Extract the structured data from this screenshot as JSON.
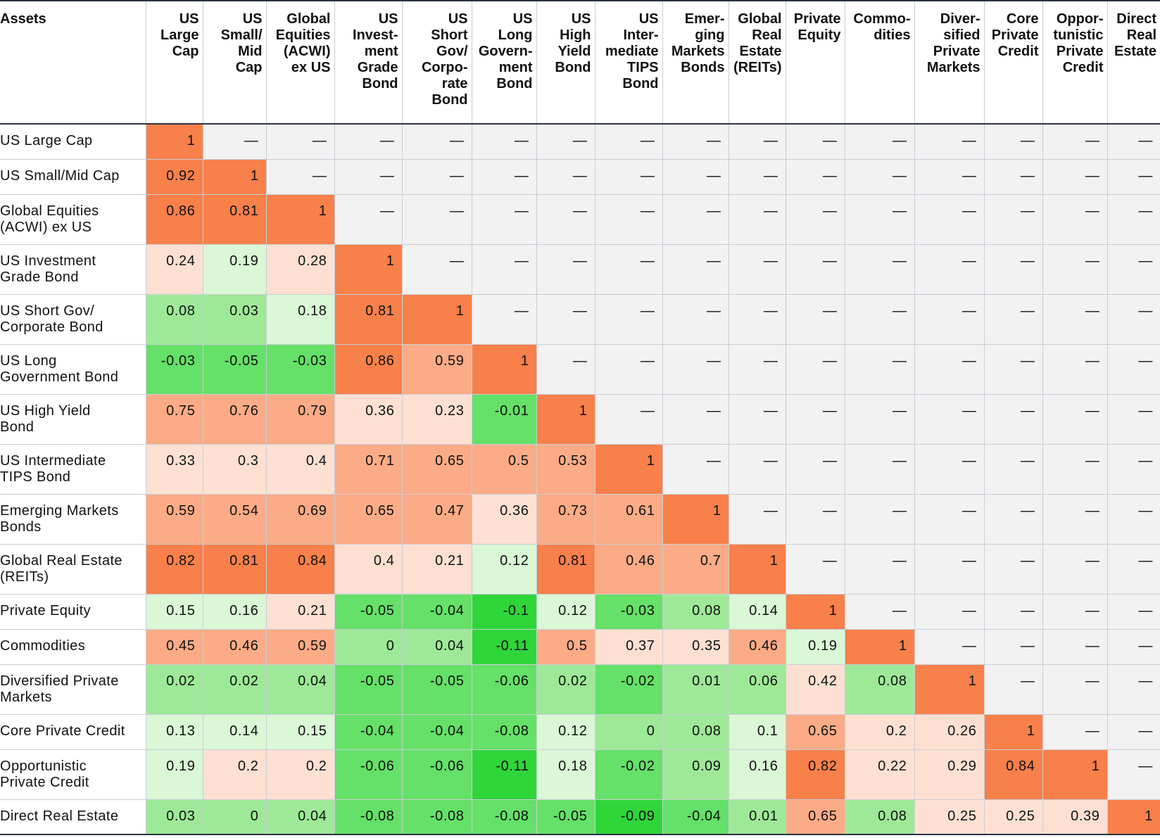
{
  "chart_data": {
    "type": "heatmap",
    "corner_label": "Assets",
    "column_headers": [
      "US\nLarge\nCap",
      "US\nSmall/\nMid\nCap",
      "Global\nEquities\n(ACWI)\nex US",
      "US\nInvest-\nment\nGrade\nBond",
      "US\nShort\nGov/\nCorpo-\nrate\nBond",
      "US\nLong\nGovern-\nment\nBond",
      "US\nHigh\nYield\nBond",
      "US\nInter-\nmediate\nTIPS\nBond",
      "Emer-\nging\nMarkets\nBonds",
      "Global\nReal\nEstate\n(REITs)",
      "Private\nEquity",
      "Commo-\ndities",
      "Diver-\nsified\nPrivate\nMarkets",
      "Core\nPrivate\nCredit",
      "Oppor-\ntunistic\nPrivate\nCredit",
      "Direct\nReal\nEstate"
    ],
    "row_headers": [
      "US Large Cap",
      "US Small/Mid Cap",
      "Global Equities\n(ACWI) ex US",
      "US Investment\nGrade Bond",
      "US Short Gov/\nCorporate Bond",
      "US Long\nGovernment Bond",
      "US High Yield\nBond",
      "US Intermediate\nTIPS Bond",
      "Emerging Markets\nBonds",
      "Global Real Estate\n(REITs)",
      "Private Equity",
      "Commodities",
      "Diversified Private\nMarkets",
      "Core Private Credit",
      "Opportunistic\nPrivate Credit",
      "Direct Real Estate"
    ],
    "empty_cell_text": "—",
    "values": [
      [
        "1"
      ],
      [
        "0.92",
        "1"
      ],
      [
        "0.86",
        "0.81",
        "1"
      ],
      [
        "0.24",
        "0.19",
        "0.28",
        "1"
      ],
      [
        "0.08",
        "0.03",
        "0.18",
        "0.81",
        "1"
      ],
      [
        "-0.03",
        "-0.05",
        "-0.03",
        "0.86",
        "0.59",
        "1"
      ],
      [
        "0.75",
        "0.76",
        "0.79",
        "0.36",
        "0.23",
        "-0.01",
        "1"
      ],
      [
        "0.33",
        "0.3",
        "0.4",
        "0.71",
        "0.65",
        "0.5",
        "0.53",
        "1"
      ],
      [
        "0.59",
        "0.54",
        "0.69",
        "0.65",
        "0.47",
        "0.36",
        "0.73",
        "0.61",
        "1"
      ],
      [
        "0.82",
        "0.81",
        "0.84",
        "0.4",
        "0.21",
        "0.12",
        "0.81",
        "0.46",
        "0.7",
        "1"
      ],
      [
        "0.15",
        "0.16",
        "0.21",
        "-0.05",
        "-0.04",
        "-0.1",
        "0.12",
        "-0.03",
        "0.08",
        "0.14",
        "1"
      ],
      [
        "0.45",
        "0.46",
        "0.59",
        "0",
        "0.04",
        "-0.11",
        "0.5",
        "0.37",
        "0.35",
        "0.46",
        "0.19",
        "1"
      ],
      [
        "0.02",
        "0.02",
        "0.04",
        "-0.05",
        "-0.05",
        "-0.06",
        "0.02",
        "-0.02",
        "0.01",
        "0.06",
        "0.42",
        "0.08",
        "1"
      ],
      [
        "0.13",
        "0.14",
        "0.15",
        "-0.04",
        "-0.04",
        "-0.08",
        "0.12",
        "0",
        "0.08",
        "0.1",
        "0.65",
        "0.2",
        "0.26",
        "1"
      ],
      [
        "0.19",
        "0.2",
        "0.2",
        "-0.06",
        "-0.06",
        "-0.11",
        "0.18",
        "-0.02",
        "0.09",
        "0.16",
        "0.82",
        "0.22",
        "0.29",
        "0.84",
        "1"
      ],
      [
        "0.03",
        "0",
        "0.04",
        "-0.08",
        "-0.08",
        "-0.08",
        "-0.05",
        "-0.09",
        "-0.04",
        "0.01",
        "0.65",
        "0.08",
        "0.25",
        "0.25",
        "0.39",
        "1"
      ]
    ],
    "colors": {
      "high_orange": "#f8804a",
      "mid_orange": "#fbab86",
      "low_orange": "#fde0d2",
      "strong_green": "#2fd63a",
      "mid_green": "#65e068",
      "light_green": "#9ee998",
      "pale_green": "#daf7d6",
      "empty_cell": "#f2f2f2"
    }
  }
}
